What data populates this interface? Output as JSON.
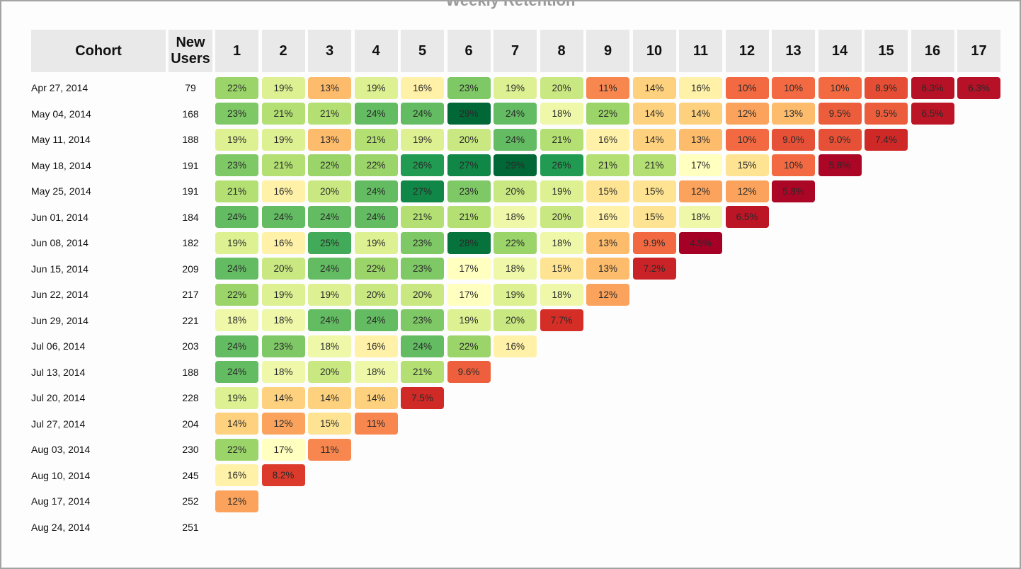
{
  "chart_data": {
    "type": "heatmap",
    "title": "Weekly Retention",
    "columns": [
      "Cohort",
      "New Users",
      "1",
      "2",
      "3",
      "4",
      "5",
      "6",
      "7",
      "8",
      "9",
      "10",
      "11",
      "12",
      "13",
      "14",
      "15",
      "16",
      "17"
    ],
    "rows": [
      {
        "cohort": "Apr 27, 2014",
        "users": "79",
        "values": [
          "22%",
          "19%",
          "13%",
          "19%",
          "16%",
          "23%",
          "19%",
          "20%",
          "11%",
          "14%",
          "16%",
          "10%",
          "10%",
          "10%",
          "8.9%",
          "6.3%",
          "6.3%"
        ]
      },
      {
        "cohort": "May 04, 2014",
        "users": "168",
        "values": [
          "23%",
          "21%",
          "21%",
          "24%",
          "24%",
          "29%",
          "24%",
          "18%",
          "22%",
          "14%",
          "14%",
          "12%",
          "13%",
          "9.5%",
          "9.5%",
          "6.5%"
        ]
      },
      {
        "cohort": "May 11, 2014",
        "users": "188",
        "values": [
          "19%",
          "19%",
          "13%",
          "21%",
          "19%",
          "20%",
          "24%",
          "21%",
          "16%",
          "14%",
          "13%",
          "10%",
          "9.0%",
          "9.0%",
          "7.4%"
        ]
      },
      {
        "cohort": "May 18, 2014",
        "users": "191",
        "values": [
          "23%",
          "21%",
          "22%",
          "22%",
          "26%",
          "27%",
          "29%",
          "26%",
          "21%",
          "21%",
          "17%",
          "15%",
          "10%",
          "5.8%"
        ]
      },
      {
        "cohort": "May 25, 2014",
        "users": "191",
        "values": [
          "21%",
          "16%",
          "20%",
          "24%",
          "27%",
          "23%",
          "20%",
          "19%",
          "15%",
          "15%",
          "12%",
          "12%",
          "5.8%"
        ]
      },
      {
        "cohort": "Jun 01, 2014",
        "users": "184",
        "values": [
          "24%",
          "24%",
          "24%",
          "24%",
          "21%",
          "21%",
          "18%",
          "20%",
          "16%",
          "15%",
          "18%",
          "6.5%"
        ]
      },
      {
        "cohort": "Jun 08, 2014",
        "users": "182",
        "values": [
          "19%",
          "16%",
          "25%",
          "19%",
          "23%",
          "28%",
          "22%",
          "18%",
          "13%",
          "9.9%",
          "4.9%"
        ]
      },
      {
        "cohort": "Jun 15, 2014",
        "users": "209",
        "values": [
          "24%",
          "20%",
          "24%",
          "22%",
          "23%",
          "17%",
          "18%",
          "15%",
          "13%",
          "7.2%"
        ]
      },
      {
        "cohort": "Jun 22, 2014",
        "users": "217",
        "values": [
          "22%",
          "19%",
          "19%",
          "20%",
          "20%",
          "17%",
          "19%",
          "18%",
          "12%"
        ]
      },
      {
        "cohort": "Jun 29, 2014",
        "users": "221",
        "values": [
          "18%",
          "18%",
          "24%",
          "24%",
          "23%",
          "19%",
          "20%",
          "7.7%"
        ]
      },
      {
        "cohort": "Jul 06, 2014",
        "users": "203",
        "values": [
          "24%",
          "23%",
          "18%",
          "16%",
          "24%",
          "22%",
          "16%"
        ]
      },
      {
        "cohort": "Jul 13, 2014",
        "users": "188",
        "values": [
          "24%",
          "18%",
          "20%",
          "18%",
          "21%",
          "9.6%"
        ]
      },
      {
        "cohort": "Jul 20, 2014",
        "users": "228",
        "values": [
          "19%",
          "14%",
          "14%",
          "14%",
          "7.5%"
        ]
      },
      {
        "cohort": "Jul 27, 2014",
        "users": "204",
        "values": [
          "14%",
          "12%",
          "15%",
          "11%"
        ]
      },
      {
        "cohort": "Aug 03, 2014",
        "users": "230",
        "values": [
          "22%",
          "17%",
          "11%"
        ]
      },
      {
        "cohort": "Aug 10, 2014",
        "users": "245",
        "values": [
          "16%",
          "8.2%"
        ]
      },
      {
        "cohort": "Aug 17, 2014",
        "users": "252",
        "values": [
          "12%"
        ]
      },
      {
        "cohort": "Aug 24, 2014",
        "users": "251",
        "values": []
      }
    ],
    "color_scale": "red-yellow-green (RdYlGn)"
  }
}
